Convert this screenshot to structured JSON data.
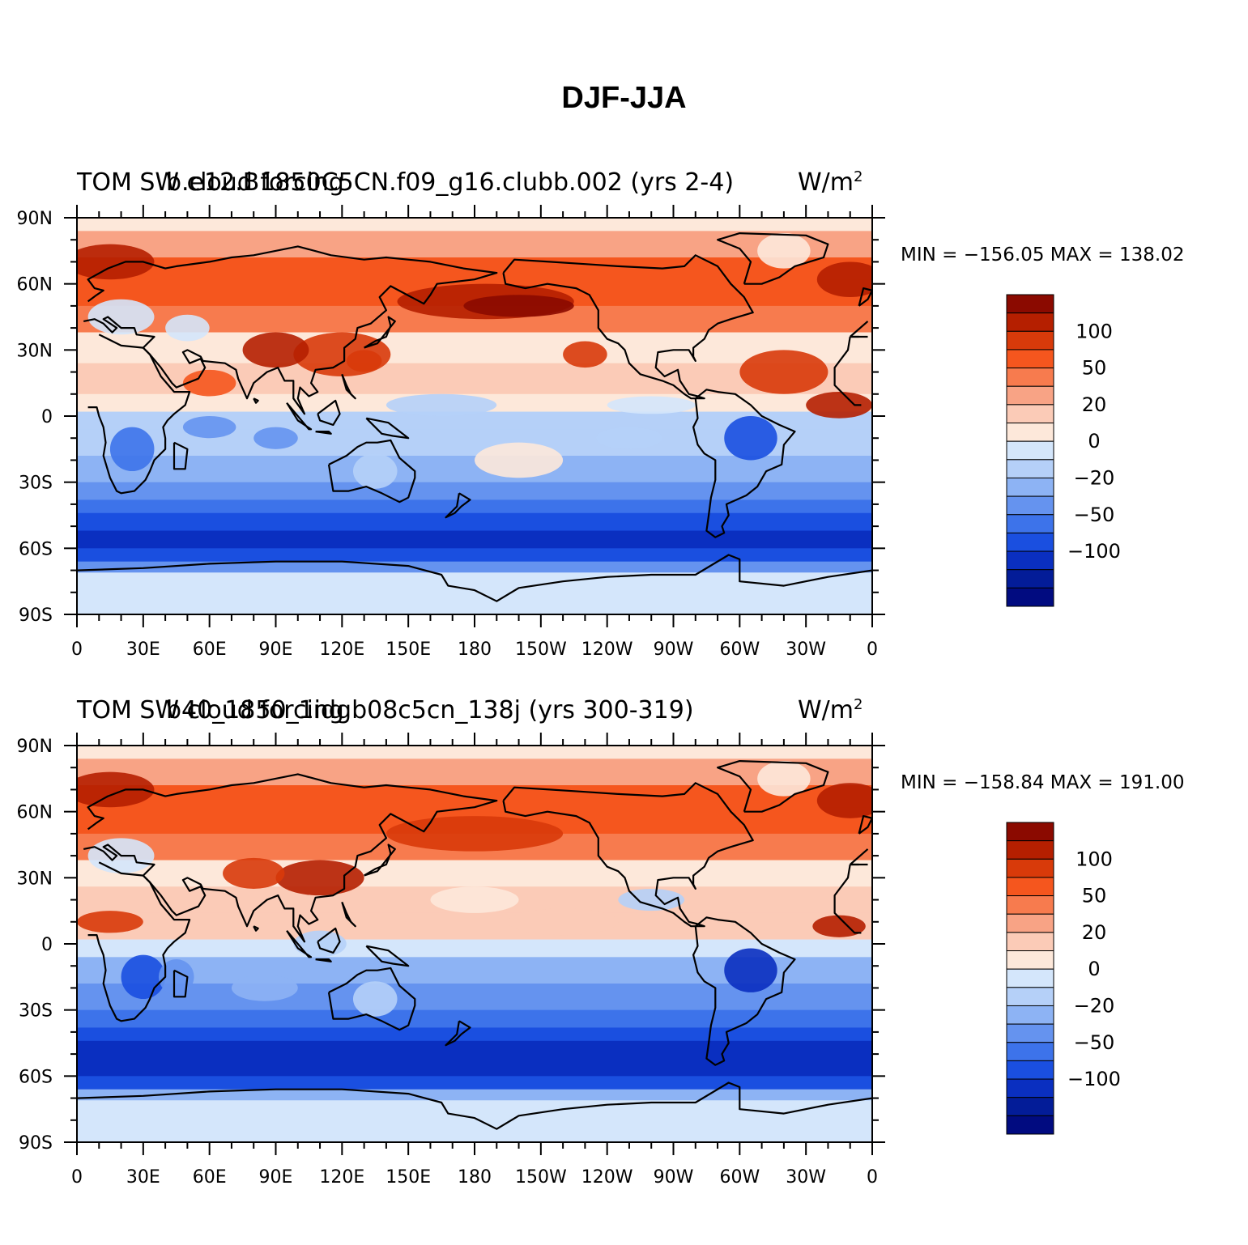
{
  "figure": {
    "title": "DJF-JJA"
  },
  "panels": [
    {
      "id": "top",
      "title_left": "TOM SW cloud forcing",
      "title_overlay": "b.e12.B1850C5CN.f09_g16.clubb.002 (yrs 2-4)",
      "units": "W/m",
      "units_exp": "2",
      "minmax_text": "MIN = −156.05 MAX = 138.02",
      "min": -156.05,
      "max": 138.02
    },
    {
      "id": "bottom",
      "title_left": "TOM SW cloud forcing",
      "title_overlay": "b40_1850_1idgb08c5cn_138j (yrs 300-319)",
      "units": "W/m",
      "units_exp": "2",
      "minmax_text": "MIN = −158.84 MAX = 191.00",
      "min": -158.84,
      "max": 191.0
    }
  ],
  "axes": {
    "lat_ticks": [
      "90N",
      "60N",
      "30N",
      "0",
      "30S",
      "60S",
      "90S"
    ],
    "lon_ticks": [
      "0",
      "30E",
      "60E",
      "90E",
      "120E",
      "150E",
      "180",
      "150W",
      "120W",
      "90W",
      "60W",
      "30W",
      "0"
    ]
  },
  "colorbar": {
    "labels": [
      "100",
      "50",
      "20",
      "0",
      "−20",
      "−50",
      "−100"
    ],
    "colors": [
      "#8b0a00",
      "#b51f00",
      "#d83a0a",
      "#f5561e",
      "#f77b4e",
      "#f8a385",
      "#fbcbb7",
      "#fde8da",
      "#d4e6fb",
      "#b5d0f8",
      "#8db3f4",
      "#6593ef",
      "#3d73ea",
      "#1a4fe0",
      "#0a2fc0",
      "#031c98",
      "#010b80"
    ]
  },
  "chart_data": {
    "type": "heatmap",
    "title": "DJF-JJA",
    "variable": "TOM SW cloud forcing",
    "units": "W/m2",
    "contour_levels": [
      -140,
      -120,
      -100,
      -80,
      -60,
      -50,
      -40,
      -20,
      -10,
      0,
      10,
      20,
      40,
      50,
      60,
      80,
      100,
      120,
      140
    ],
    "xlim": [
      0,
      360
    ],
    "ylim": [
      -90,
      90
    ],
    "maps": [
      {
        "case": "b.e12.B1850C5CN.f09_g16.clubb.002 (yrs 2-4)",
        "min": -156.05,
        "max": 138.02
      },
      {
        "case": "b40_1850_1idgb08c5cn_138j (yrs 300-319)",
        "min": -158.84,
        "max": 191.0
      }
    ]
  }
}
